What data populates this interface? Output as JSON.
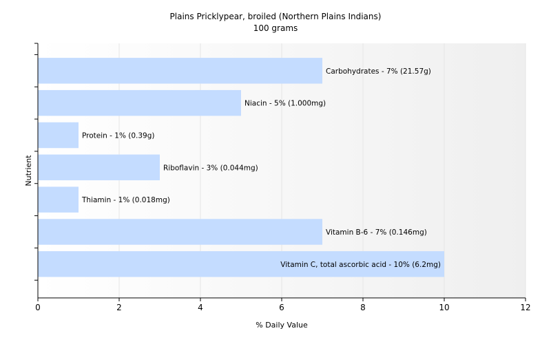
{
  "chart_data": {
    "type": "bar",
    "orientation": "horizontal",
    "title": "Plains Pricklypear, broiled (Northern Plains Indians)",
    "subtitle": "100 grams",
    "xlabel": "% Daily Value",
    "ylabel": "Nutrient",
    "xlim": [
      0,
      12
    ],
    "x_ticks": [
      "0",
      "2",
      "4",
      "6",
      "8",
      "10",
      "12"
    ],
    "grid": true,
    "categories": [
      "Carbohydrates",
      "Niacin",
      "Protein",
      "Riboflavin",
      "Thiamin",
      "Vitamin B-6",
      "Vitamin C, total ascorbic acid"
    ],
    "values": [
      7,
      5,
      1,
      3,
      1,
      7,
      10
    ],
    "data_labels": [
      "Carbohydrates - 7% (21.57g)",
      "Niacin - 5% (1.000mg)",
      "Protein - 1% (0.39g)",
      "Riboflavin - 3% (0.044mg)",
      "Thiamin - 1% (0.018mg)",
      "Vitamin B-6 - 7% (0.146mg)",
      "Vitamin C, total ascorbic acid - 10% (6.2mg)"
    ],
    "colors": {
      "bar": "#c4dcff",
      "grid": "#e6e6e6",
      "axis": "#000000"
    }
  }
}
